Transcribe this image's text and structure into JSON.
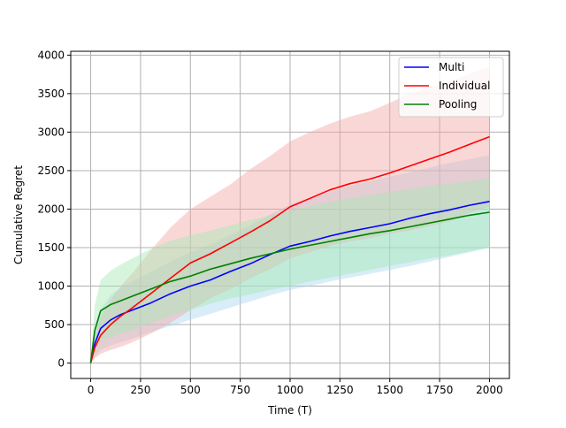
{
  "chart_data": {
    "type": "line",
    "title": "",
    "xlabel": "Time (T)",
    "ylabel": "Cumulative Regret",
    "xlim": [
      -100,
      2100
    ],
    "ylim": [
      -200,
      4050
    ],
    "xticks": [
      0,
      250,
      500,
      750,
      1000,
      1250,
      1500,
      1750,
      2000
    ],
    "yticks": [
      0,
      500,
      1000,
      1500,
      2000,
      2500,
      3000,
      3500,
      4000
    ],
    "grid": true,
    "legend_position": "top-right",
    "series": [
      {
        "name": "Multi",
        "color": "#0000ff",
        "band_color": "#a8d8f0",
        "x": [
          0,
          20,
          50,
          100,
          150,
          200,
          300,
          400,
          500,
          600,
          700,
          800,
          900,
          1000,
          1100,
          1200,
          1300,
          1400,
          1500,
          1600,
          1700,
          1800,
          1900,
          2000
        ],
        "y": [
          0,
          250,
          450,
          560,
          630,
          680,
          780,
          900,
          1000,
          1080,
          1190,
          1290,
          1410,
          1520,
          1580,
          1650,
          1710,
          1760,
          1810,
          1880,
          1940,
          1990,
          2050,
          2100
        ],
        "lower": [
          0,
          80,
          170,
          230,
          270,
          310,
          400,
          480,
          560,
          640,
          720,
          800,
          880,
          950,
          1000,
          1060,
          1110,
          1160,
          1210,
          1260,
          1320,
          1380,
          1440,
          1500
        ],
        "upper": [
          0,
          430,
          700,
          880,
          980,
          1050,
          1180,
          1320,
          1440,
          1540,
          1660,
          1790,
          1930,
          2060,
          2140,
          2220,
          2300,
          2360,
          2420,
          2480,
          2540,
          2600,
          2650,
          2700
        ]
      },
      {
        "name": "Individual",
        "color": "#ff0000",
        "band_color": "#f4a6a6",
        "x": [
          0,
          20,
          50,
          100,
          150,
          200,
          300,
          400,
          500,
          600,
          700,
          800,
          900,
          1000,
          1100,
          1200,
          1300,
          1400,
          1500,
          1600,
          1700,
          1800,
          1900,
          2000
        ],
        "y": [
          0,
          200,
          360,
          500,
          610,
          700,
          900,
          1100,
          1300,
          1420,
          1560,
          1700,
          1850,
          2030,
          2140,
          2250,
          2330,
          2390,
          2470,
          2560,
          2650,
          2740,
          2840,
          2940
        ],
        "lower": [
          0,
          60,
          120,
          170,
          210,
          260,
          380,
          520,
          690,
          840,
          960,
          1100,
          1220,
          1360,
          1440,
          1520,
          1580,
          1620,
          1680,
          1720,
          1780,
          1840,
          1950,
          2030
        ],
        "upper": [
          0,
          340,
          600,
          820,
          1000,
          1140,
          1460,
          1760,
          2000,
          2160,
          2320,
          2520,
          2690,
          2880,
          3000,
          3110,
          3200,
          3270,
          3380,
          3500,
          3580,
          3660,
          3760,
          3850
        ]
      },
      {
        "name": "Pooling",
        "color": "#008000",
        "band_color": "#a6e8b4",
        "x": [
          0,
          20,
          50,
          100,
          150,
          200,
          300,
          400,
          500,
          600,
          700,
          800,
          900,
          1000,
          1100,
          1200,
          1300,
          1400,
          1500,
          1600,
          1700,
          1800,
          1900,
          2000
        ],
        "y": [
          0,
          420,
          680,
          760,
          810,
          860,
          960,
          1060,
          1130,
          1220,
          1290,
          1360,
          1420,
          1480,
          1530,
          1580,
          1630,
          1680,
          1720,
          1770,
          1820,
          1870,
          1920,
          1960
        ],
        "lower": [
          0,
          150,
          290,
          340,
          380,
          420,
          520,
          620,
          690,
          770,
          840,
          890,
          950,
          1000,
          1060,
          1110,
          1160,
          1210,
          1260,
          1310,
          1360,
          1400,
          1450,
          1500
        ],
        "upper": [
          0,
          750,
          1080,
          1200,
          1280,
          1350,
          1480,
          1590,
          1660,
          1720,
          1790,
          1860,
          1920,
          1980,
          2040,
          2090,
          2140,
          2180,
          2220,
          2260,
          2300,
          2330,
          2360,
          2400
        ]
      }
    ]
  }
}
